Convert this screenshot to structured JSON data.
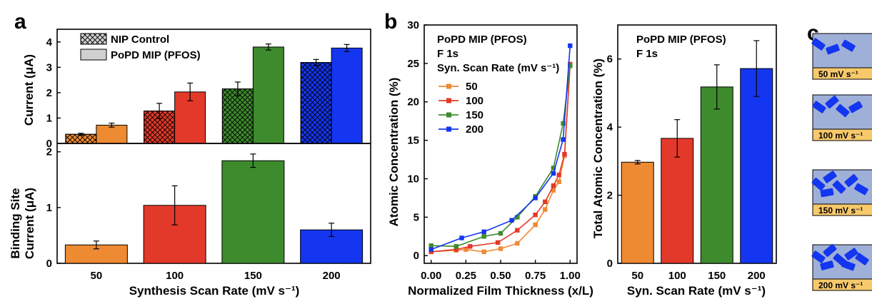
{
  "panel_labels": [
    "a",
    "b",
    "c"
  ],
  "colors": {
    "50": "#ee8a32",
    "100": "#e3392a",
    "150": "#3d8b2d",
    "200": "#1436f0",
    "scheme_bg": "#9fb0d8",
    "scheme_band": "#f7c96b",
    "rod": "#1436f0"
  },
  "chart_data": [
    {
      "id": "a-top",
      "type": "bar",
      "title": "",
      "xlabel": "",
      "ylabel": "Current (μA)",
      "ylim": [
        0,
        4.5
      ],
      "yticks": [
        0,
        1,
        2,
        3,
        4
      ],
      "categories": [
        "50",
        "100",
        "150",
        "200"
      ],
      "legend": {
        "position": "top-left",
        "entries": [
          "NIP Control",
          "PoPD MIP (PFOS)"
        ]
      },
      "series": [
        {
          "name": "NIP Control",
          "hatch": "crosshatch",
          "values": [
            0.36,
            1.28,
            2.15,
            3.19
          ],
          "errors": [
            0.04,
            0.3,
            0.27,
            0.12
          ]
        },
        {
          "name": "PoPD MIP (PFOS)",
          "hatch": "none",
          "values": [
            0.72,
            2.03,
            3.8,
            3.76
          ],
          "errors": [
            0.08,
            0.35,
            0.12,
            0.14
          ]
        }
      ]
    },
    {
      "id": "a-bottom",
      "type": "bar",
      "title": "",
      "xlabel": "Synthesis Scan Rate (mV s⁻¹)",
      "ylabel_lines": [
        "Binding Site",
        "Current (μA)"
      ],
      "ylim": [
        0,
        2.15
      ],
      "yticks": [
        0,
        1,
        2
      ],
      "categories": [
        "50",
        "100",
        "150",
        "200"
      ],
      "series": [
        {
          "values": [
            0.33,
            1.04,
            1.84,
            0.6
          ],
          "errors": [
            0.07,
            0.35,
            0.12,
            0.12
          ]
        }
      ]
    },
    {
      "id": "b-left",
      "type": "line",
      "annotation": [
        "PoPD MIP (PFOS)",
        "F 1s"
      ],
      "legend_title": "Syn. Scan Rate (mV s⁻¹)",
      "xlabel": "Normalized Film Thickness (x/L)",
      "ylabel": "Atomic Concentration (%)",
      "xlim": [
        -0.05,
        1.05
      ],
      "ylim": [
        -1,
        30
      ],
      "xticks": [
        "0.00",
        "0.25",
        "0.50",
        "0.75",
        "1.00"
      ],
      "yticks": [
        0,
        5,
        10,
        15,
        20,
        25,
        30
      ],
      "series": [
        {
          "name": "50",
          "x": [
            0.0,
            0.18,
            0.25,
            0.38,
            0.5,
            0.62,
            0.75,
            0.82,
            0.88,
            0.92,
            0.96,
            1.0
          ],
          "y": [
            0.5,
            0.7,
            0.8,
            0.5,
            0.9,
            1.6,
            4.0,
            6.0,
            8.5,
            9.6,
            13.0,
            24.7
          ]
        },
        {
          "name": "100",
          "x": [
            0.0,
            0.18,
            0.28,
            0.48,
            0.62,
            0.75,
            0.82,
            0.88,
            0.92,
            0.96,
            1.0
          ],
          "y": [
            0.5,
            0.8,
            1.2,
            1.7,
            3.3,
            5.3,
            7.0,
            9.1,
            10.5,
            13.2,
            24.9
          ]
        },
        {
          "name": "150",
          "x": [
            0.0,
            0.18,
            0.38,
            0.5,
            0.62,
            0.75,
            0.88,
            0.95,
            1.0
          ],
          "y": [
            1.3,
            1.2,
            2.5,
            2.9,
            5.0,
            7.7,
            11.4,
            17.2,
            24.7
          ]
        },
        {
          "name": "200",
          "x": [
            0.0,
            0.22,
            0.38,
            0.58,
            0.75,
            0.88,
            0.95,
            1.0
          ],
          "y": [
            0.8,
            2.3,
            3.1,
            4.6,
            7.5,
            10.7,
            15.1,
            27.3
          ]
        }
      ]
    },
    {
      "id": "b-right",
      "type": "bar",
      "annotation": [
        "PoPD MIP (PFOS)",
        "F 1s"
      ],
      "xlabel": "Syn. Scan Rate (mV s⁻¹)",
      "ylabel": "Total Atomic Concentration (%)",
      "ylim": [
        0,
        7
      ],
      "yticks": [
        0,
        2,
        4,
        6
      ],
      "categories": [
        "50",
        "100",
        "150",
        "200"
      ],
      "series": [
        {
          "values": [
            2.97,
            3.67,
            5.18,
            5.72
          ],
          "errors": [
            0.05,
            0.55,
            0.65,
            0.82
          ]
        }
      ]
    }
  ],
  "scheme_c": {
    "labels": [
      "50 mV s⁻¹",
      "100 mV s⁻¹",
      "150 mV s⁻¹",
      "200 mV s⁻¹"
    ]
  }
}
